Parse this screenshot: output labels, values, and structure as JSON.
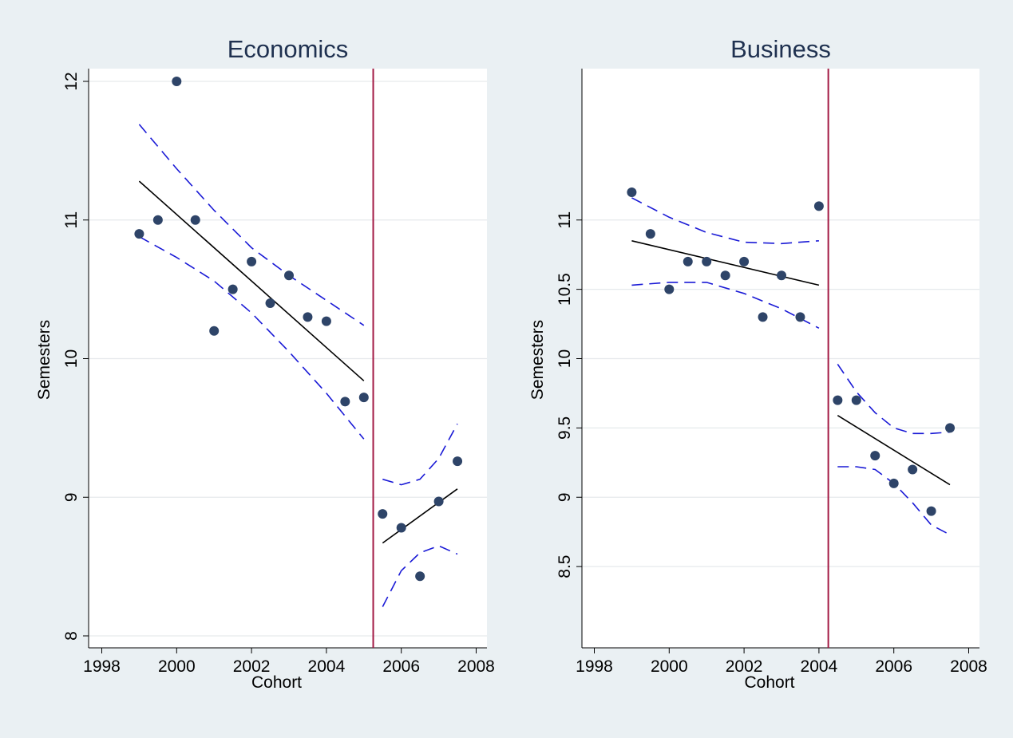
{
  "chart_data": [
    {
      "type": "scatter",
      "title": "Economics",
      "xlabel": "Cohort",
      "ylabel": "Semesters",
      "xlim": [
        1998,
        2008
      ],
      "ylim": [
        8,
        12
      ],
      "xticks": [
        1998,
        2000,
        2002,
        2004,
        2006,
        2008
      ],
      "yticks": [
        8,
        9,
        10,
        11,
        12
      ],
      "grid": true,
      "cutoff": 2005.25,
      "points": [
        [
          1999,
          10.9
        ],
        [
          1999.5,
          11.0
        ],
        [
          2000,
          12.0
        ],
        [
          2000.5,
          11.0
        ],
        [
          2001,
          10.2
        ],
        [
          2001.5,
          10.5
        ],
        [
          2002,
          10.7
        ],
        [
          2002.5,
          10.4
        ],
        [
          2003,
          10.6
        ],
        [
          2003.5,
          10.3
        ],
        [
          2004,
          10.27
        ],
        [
          2004.5,
          9.69
        ],
        [
          2005,
          9.72
        ],
        [
          2005.5,
          8.88
        ],
        [
          2006,
          8.78
        ],
        [
          2006.5,
          8.43
        ],
        [
          2007,
          8.97
        ],
        [
          2007.5,
          9.26
        ]
      ],
      "segments": [
        {
          "fit": [
            [
              1999,
              11.28
            ],
            [
              2005,
              9.84
            ]
          ],
          "ci_upper": [
            [
              1999,
              11.69
            ],
            [
              2000,
              11.37
            ],
            [
              2001,
              11.07
            ],
            [
              2002,
              10.8
            ],
            [
              2003,
              10.6
            ],
            [
              2004,
              10.42
            ],
            [
              2005,
              10.24
            ]
          ],
          "ci_lower": [
            [
              1999,
              10.88
            ],
            [
              2000,
              10.73
            ],
            [
              2001,
              10.56
            ],
            [
              2002,
              10.33
            ],
            [
              2003,
              10.05
            ],
            [
              2004,
              9.75
            ],
            [
              2005,
              9.42
            ]
          ]
        },
        {
          "fit": [
            [
              2005.5,
              8.67
            ],
            [
              2007.5,
              9.06
            ]
          ],
          "ci_upper": [
            [
              2005.5,
              9.13
            ],
            [
              2006,
              9.09
            ],
            [
              2006.5,
              9.13
            ],
            [
              2007,
              9.28
            ],
            [
              2007.5,
              9.53
            ]
          ],
          "ci_lower": [
            [
              2005.5,
              8.21
            ],
            [
              2006,
              8.47
            ],
            [
              2006.5,
              8.6
            ],
            [
              2007,
              8.65
            ],
            [
              2007.5,
              8.59
            ]
          ]
        }
      ]
    },
    {
      "type": "scatter",
      "title": "Business",
      "xlabel": "Cohort",
      "ylabel": "Semesters",
      "xlim": [
        1998,
        2008
      ],
      "ylim": [
        8,
        12
      ],
      "xticks": [
        1998,
        2000,
        2002,
        2004,
        2006,
        2008
      ],
      "yticks": [
        8.5,
        9,
        9.5,
        10,
        10.5,
        11
      ],
      "grid": true,
      "cutoff": 2004.25,
      "points": [
        [
          1999,
          11.2
        ],
        [
          1999.5,
          10.9
        ],
        [
          2000,
          10.5
        ],
        [
          2000.5,
          10.7
        ],
        [
          2001,
          10.7
        ],
        [
          2001.5,
          10.6
        ],
        [
          2002,
          10.7
        ],
        [
          2002.5,
          10.3
        ],
        [
          2003,
          10.6
        ],
        [
          2003.5,
          10.3
        ],
        [
          2004,
          11.1
        ],
        [
          2004.5,
          9.7
        ],
        [
          2005,
          9.7
        ],
        [
          2005.5,
          9.3
        ],
        [
          2006,
          9.1
        ],
        [
          2006.5,
          9.2
        ],
        [
          2007,
          8.9
        ],
        [
          2007.5,
          9.5
        ]
      ],
      "segments": [
        {
          "fit": [
            [
              1999,
              10.85
            ],
            [
              2004,
              10.53
            ]
          ],
          "ci_upper": [
            [
              1999,
              11.16
            ],
            [
              2000,
              11.02
            ],
            [
              2001,
              10.91
            ],
            [
              2002,
              10.84
            ],
            [
              2003,
              10.83
            ],
            [
              2004,
              10.85
            ]
          ],
          "ci_lower": [
            [
              1999,
              10.53
            ],
            [
              2000,
              10.55
            ],
            [
              2001,
              10.55
            ],
            [
              2002,
              10.47
            ],
            [
              2003,
              10.36
            ],
            [
              2004,
              10.22
            ]
          ]
        },
        {
          "fit": [
            [
              2004.5,
              9.59
            ],
            [
              2007.5,
              9.09
            ]
          ],
          "ci_upper": [
            [
              2004.5,
              9.96
            ],
            [
              2005,
              9.76
            ],
            [
              2005.5,
              9.61
            ],
            [
              2006,
              9.5
            ],
            [
              2006.5,
              9.46
            ],
            [
              2007,
              9.46
            ],
            [
              2007.5,
              9.47
            ]
          ],
          "ci_lower": [
            [
              2004.5,
              9.22
            ],
            [
              2005,
              9.22
            ],
            [
              2005.5,
              9.2
            ],
            [
              2006,
              9.1
            ],
            [
              2006.5,
              8.96
            ],
            [
              2007,
              8.8
            ],
            [
              2007.5,
              8.73
            ]
          ]
        }
      ]
    }
  ]
}
